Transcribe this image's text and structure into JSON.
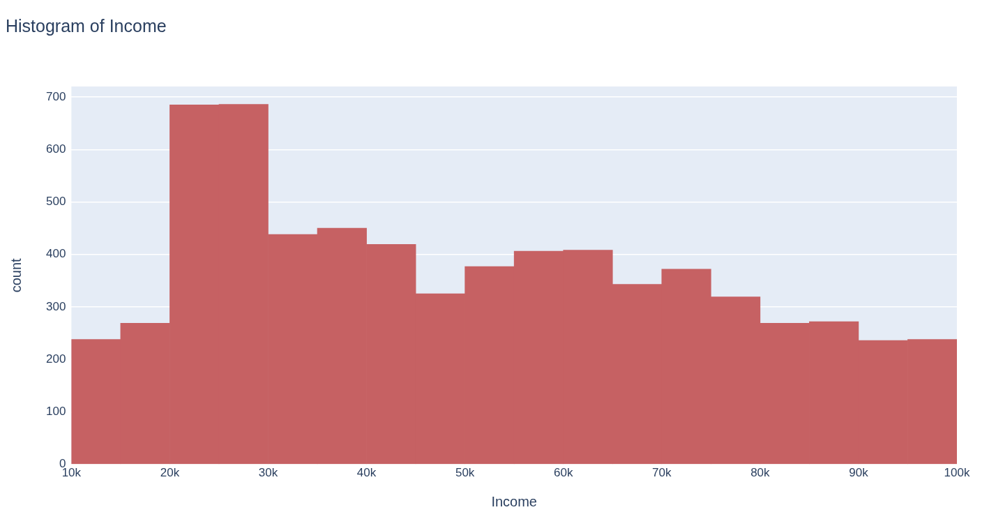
{
  "chart_data": {
    "type": "histogram",
    "title": "Histogram of Income",
    "xlabel": "Income",
    "ylabel": "count",
    "bins": [
      10000,
      15000,
      20000,
      25000,
      30000,
      35000,
      40000,
      45000,
      50000,
      55000,
      60000,
      65000,
      70000,
      75000,
      80000,
      85000,
      90000,
      95000,
      100000
    ],
    "values": [
      238,
      269,
      685,
      686,
      438,
      450,
      419,
      325,
      377,
      406,
      408,
      343,
      372,
      319,
      269,
      272,
      236,
      238
    ],
    "color": "#c66163",
    "xlim": [
      10000,
      100000
    ],
    "xticks": [
      {
        "value": 10000,
        "label": "10k"
      },
      {
        "value": 20000,
        "label": "20k"
      },
      {
        "value": 30000,
        "label": "30k"
      },
      {
        "value": 40000,
        "label": "40k"
      },
      {
        "value": 50000,
        "label": "50k"
      },
      {
        "value": 60000,
        "label": "60k"
      },
      {
        "value": 70000,
        "label": "70k"
      },
      {
        "value": 80000,
        "label": "80k"
      },
      {
        "value": 90000,
        "label": "90k"
      },
      {
        "value": 100000,
        "label": "100k"
      }
    ],
    "ylim": [
      0,
      720
    ],
    "yticks": [
      0,
      100,
      200,
      300,
      400,
      500,
      600,
      700
    ],
    "grid": "y",
    "legend": false
  }
}
